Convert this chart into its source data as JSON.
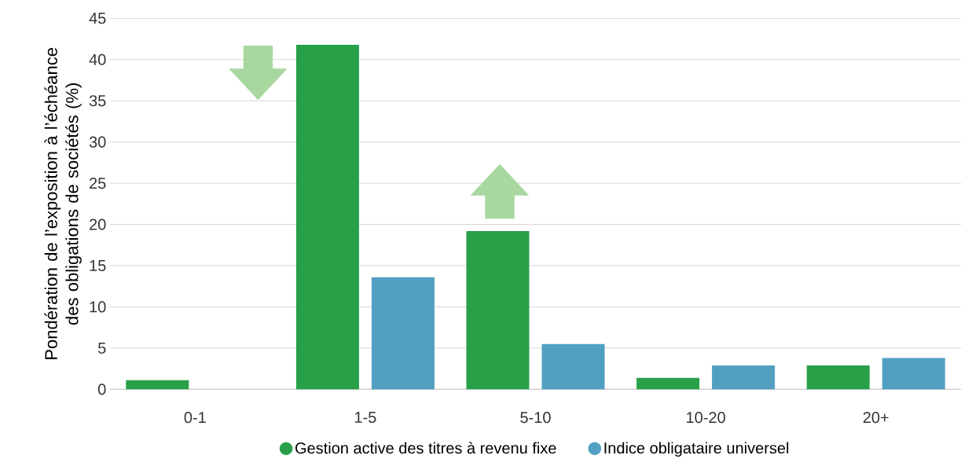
{
  "chart_data": {
    "type": "bar",
    "ylabel": "Pondération de l’exposition à l’échéance des obligations de sociétés (%)",
    "categories": [
      "0-1",
      "1-5",
      "5-10",
      "10-20",
      "20+"
    ],
    "series": [
      {
        "name": "Gestion active des titres à revenu fixe",
        "color": "#27a048",
        "values": [
          1.1,
          41.8,
          19.2,
          1.4,
          2.9
        ]
      },
      {
        "name": "Indice obligataire universel",
        "color": "#519fc1",
        "values": [
          null,
          13.6,
          5.5,
          2.9,
          3.8
        ]
      }
    ],
    "ylim": [
      0,
      45
    ],
    "yticks": [
      0,
      5,
      10,
      15,
      20,
      25,
      30,
      35,
      40,
      45
    ],
    "grid": "y",
    "legend": "bottom"
  }
}
